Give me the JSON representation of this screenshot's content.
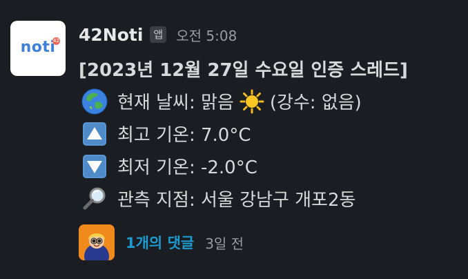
{
  "app": {
    "avatar_text": "noti",
    "avatar_badge": "42",
    "sender_name": "42Noti",
    "app_badge": "앱",
    "timestamp": "오전 5:08"
  },
  "message": {
    "title": "[2023년 12월 27일 수요일 인증 스레드]",
    "weather_label": "현재 날씨: 맑음",
    "precipitation": "(강수: 없음)",
    "high_temp": "최고 기온: 7.0°C",
    "low_temp": "최저 기온: -2.0°C",
    "location": "관측 지점: 서울 강남구 개포2동",
    "icons": [
      "globe-asia-icon",
      "sun-icon",
      "up-arrow-icon",
      "down-arrow-icon",
      "magnifier-icon"
    ]
  },
  "thread": {
    "reply_count": "1개의 댓글",
    "reply_time": "3일 전"
  },
  "colors": {
    "background": "#1a1d21",
    "link": "#1d9bd1",
    "badge_bg": "#3b3d42",
    "text": "#d1d2d3",
    "muted": "#9a9b9e"
  }
}
